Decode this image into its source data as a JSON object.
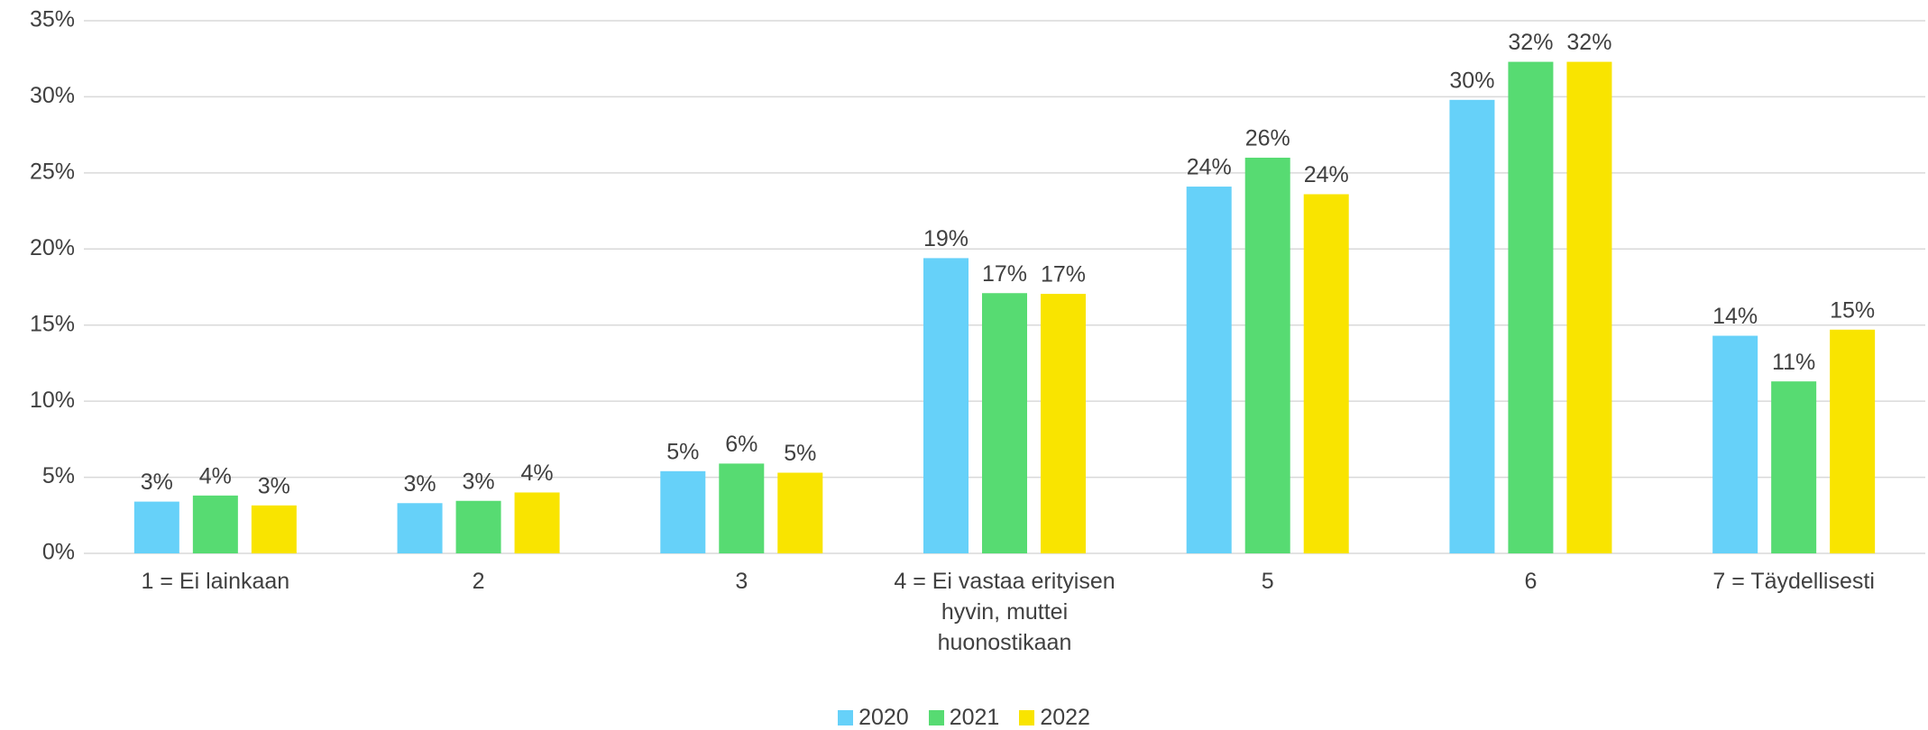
{
  "chart_data": {
    "type": "bar",
    "categories": [
      "1 = Ei lainkaan",
      "2",
      "3",
      "4 = Ei vastaa erityisen hyvin, muttei huonostikaan",
      "5",
      "6",
      "7 = Täydellisesti"
    ],
    "series": [
      {
        "name": "2020",
        "color": "#66d1f9",
        "values": [
          3.4,
          3.3,
          5.4,
          19.4,
          24.1,
          29.8,
          14.3
        ],
        "value_labels": [
          "3%",
          "3%",
          "5%",
          "19%",
          "24%",
          "30%",
          "14%"
        ]
      },
      {
        "name": "2021",
        "color": "#57db72",
        "values": [
          3.8,
          3.45,
          5.9,
          17.1,
          26.0,
          32.3,
          11.3
        ],
        "value_labels": [
          "4%",
          "3%",
          "6%",
          "17%",
          "26%",
          "32%",
          "11%"
        ]
      },
      {
        "name": "2022",
        "color": "#f9e400",
        "values": [
          3.15,
          4.0,
          5.3,
          17.05,
          23.6,
          32.3,
          14.7
        ],
        "value_labels": [
          "3%",
          "4%",
          "5%",
          "17%",
          "24%",
          "32%",
          "15%"
        ]
      }
    ],
    "ylim": [
      0,
      35
    ],
    "yticks": [
      {
        "value": 0,
        "label": "0%"
      },
      {
        "value": 5,
        "label": "5%"
      },
      {
        "value": 10,
        "label": "10%"
      },
      {
        "value": 15,
        "label": "15%"
      },
      {
        "value": 20,
        "label": "20%"
      },
      {
        "value": 25,
        "label": "25%"
      },
      {
        "value": 30,
        "label": "30%"
      },
      {
        "value": 35,
        "label": "35%"
      }
    ],
    "grid": true,
    "legend": "bottom"
  }
}
